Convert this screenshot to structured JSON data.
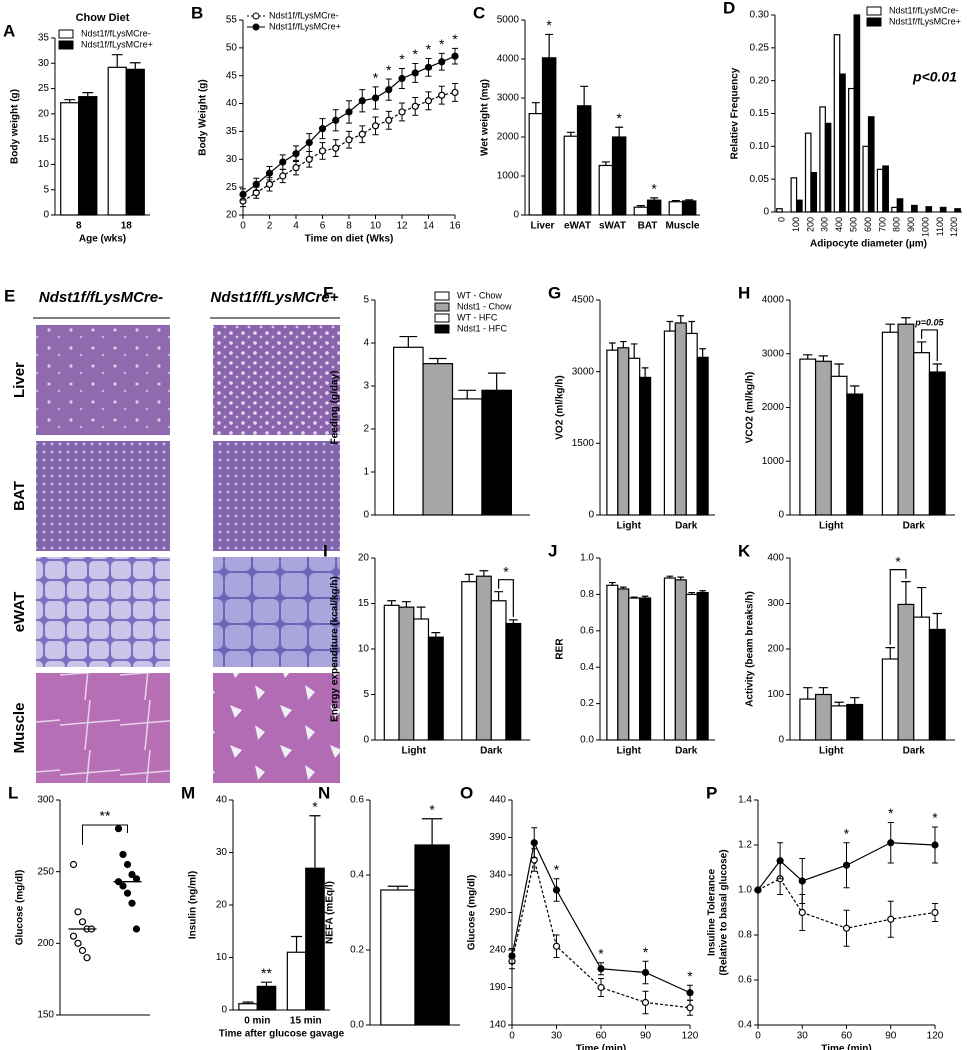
{
  "histology": {
    "panel": "E",
    "columns": [
      "Ndst1f/fLysMCre-",
      "Ndst1f/fLysMCre+"
    ],
    "rows": [
      "Liver",
      "BAT",
      "eWAT",
      "Muscle"
    ]
  },
  "chart_data": [
    {
      "panel": "A",
      "type": "bar",
      "title": "Chow Diet",
      "ylabel": "Body weight  (g)",
      "xlabel": "Age (wks)",
      "categories": [
        "8",
        "18"
      ],
      "ylim": [
        0,
        35
      ],
      "yticks": [
        0,
        5,
        10,
        15,
        20,
        25,
        30,
        35
      ],
      "legend": "top-left",
      "series": [
        {
          "name": "Ndst1f/fLysMCre-",
          "color": "#ffffff",
          "values": [
            22.2,
            29.2
          ],
          "errors": [
            0.6,
            2.5
          ]
        },
        {
          "name": "Ndst1f/fLysMCre+",
          "color": "#000000",
          "values": [
            23.4,
            28.8
          ],
          "errors": [
            0.8,
            1.3
          ]
        }
      ]
    },
    {
      "panel": "B",
      "type": "line",
      "ylabel": "Body Weight (g)",
      "xlabel": "Time on diet (Wks)",
      "x": [
        0,
        1,
        2,
        3,
        4,
        5,
        6,
        7,
        8,
        9,
        10,
        11,
        12,
        13,
        14,
        15,
        16
      ],
      "xlim": [
        0,
        16
      ],
      "xticks": [
        0,
        2,
        4,
        6,
        8,
        10,
        12,
        14,
        16
      ],
      "ylim": [
        20,
        55
      ],
      "yticks": [
        20,
        25,
        30,
        35,
        40,
        45,
        50,
        55
      ],
      "legend": "top-left",
      "series": [
        {
          "name": "Ndst1f/fLysMCre-",
          "color": "#000000",
          "marker": "open",
          "dashed": true,
          "values": [
            22.5,
            24,
            25.5,
            27,
            28.5,
            30,
            31.5,
            32,
            33.5,
            34.5,
            36,
            37,
            38.5,
            39.5,
            40.5,
            41.5,
            42
          ],
          "errors": [
            1,
            1,
            1.2,
            1.2,
            1.3,
            1.4,
            1.5,
            1.5,
            1.5,
            1.5,
            1.6,
            1.6,
            1.6,
            1.6,
            1.6,
            1.6,
            1.6
          ]
        },
        {
          "name": "Ndst1f/fLysMCre+",
          "color": "#000000",
          "marker": "filled",
          "dashed": false,
          "values": [
            23.7,
            25.5,
            27.5,
            29.5,
            31,
            33,
            35.5,
            37,
            38.5,
            40.5,
            41,
            42.5,
            44.5,
            45.5,
            46.5,
            47.5,
            48.5
          ],
          "errors": [
            1,
            1.1,
            1.2,
            1.3,
            1.4,
            1.6,
            1.8,
            1.9,
            2,
            2,
            2,
            1.9,
            1.8,
            1.7,
            1.6,
            1.5,
            1.4
          ],
          "sig": [
            null,
            null,
            null,
            null,
            null,
            null,
            null,
            null,
            null,
            null,
            "*",
            "*",
            "*",
            "*",
            "*",
            "*",
            "*"
          ]
        }
      ]
    },
    {
      "panel": "C",
      "type": "bar",
      "ylabel": "Wet weight (mg)",
      "categories": [
        "Liver",
        "eWAT",
        "sWAT",
        "BAT",
        "Muscle"
      ],
      "ylim": [
        0,
        5000
      ],
      "yticks": [
        0,
        1000,
        2000,
        3000,
        4000,
        5000
      ],
      "series": [
        {
          "color": "#ffffff",
          "values": [
            2600,
            2020,
            1270,
            200,
            340
          ],
          "errors": [
            280,
            100,
            90,
            40,
            30
          ]
        },
        {
          "color": "#000000",
          "values": [
            4030,
            2800,
            2000,
            380,
            360
          ],
          "errors": [
            600,
            500,
            250,
            60,
            30
          ],
          "sig": [
            "*",
            null,
            "*",
            "*",
            null
          ]
        }
      ]
    },
    {
      "panel": "D",
      "type": "bar",
      "ylabel": "Relatiev Frequency",
      "xlabel": "Adipocyte diameter (µm)",
      "annotation": "p<0.01",
      "xtick_rotation": -90,
      "categories": [
        "0",
        "100",
        "200",
        "300",
        "400",
        "500",
        "600",
        "700",
        "800",
        "900",
        "1000",
        "1100",
        "1200"
      ],
      "ylim": [
        0,
        0.3
      ],
      "yticks": [
        0,
        0.05,
        {
          "value": 0.1,
          "label": "0.10"
        },
        0.15,
        {
          "value": 0.2,
          "label": "0.20"
        },
        0.25,
        {
          "value": 0.3,
          "label": "0.30"
        }
      ],
      "legend": "top-right",
      "series": [
        {
          "name": "Ndst1f/fLysMCre-",
          "color": "#ffffff",
          "values": [
            0.005,
            0.052,
            0.12,
            0.16,
            0.27,
            0.188,
            0.1,
            0.065,
            0.007,
            0,
            0,
            0,
            0
          ]
        },
        {
          "name": "Ndst1f/fLysMCre+",
          "color": "#000000",
          "values": [
            0,
            0.018,
            0.06,
            0.135,
            0.21,
            0.3,
            0.145,
            0.07,
            0.02,
            0.01,
            0.008,
            0.007,
            0.005
          ]
        }
      ]
    },
    {
      "panel": "F",
      "type": "bar",
      "ylabel": "Feeding (g/day)",
      "categories": [
        null
      ],
      "ylim": [
        0,
        5
      ],
      "yticks": [
        0,
        1,
        2,
        3,
        4,
        5
      ],
      "legend": "top-right",
      "series": [
        {
          "name": "WT - Chow",
          "color": "#ffffff",
          "values": [
            3.9
          ],
          "errors": [
            0.25
          ]
        },
        {
          "name": "Ndst1 - Chow",
          "color": "#a6a6a6",
          "values": [
            3.52
          ],
          "errors": [
            0.12
          ]
        },
        {
          "name": "WT - HFC",
          "color": "#ffffff",
          "values": [
            2.7
          ],
          "errors": [
            0.2
          ]
        },
        {
          "name": "Ndst1 - HFC",
          "color": "#000000",
          "values": [
            2.9
          ],
          "errors": [
            0.4
          ]
        }
      ]
    },
    {
      "panel": "G",
      "type": "bar",
      "ylabel": "VO2 (ml/kg/h)",
      "categories": [
        "Light",
        "Dark"
      ],
      "ylim": [
        0,
        4500
      ],
      "yticks": [
        0,
        1500,
        3000,
        4500
      ],
      "series": [
        {
          "color": "#ffffff",
          "values": [
            3450,
            3850
          ],
          "errors": [
            150,
            200
          ]
        },
        {
          "color": "#a6a6a6",
          "values": [
            3500,
            4020
          ],
          "errors": [
            130,
            150
          ]
        },
        {
          "color": "#ffffff",
          "values": [
            3280,
            3800
          ],
          "errors": [
            300,
            250
          ]
        },
        {
          "color": "#000000",
          "values": [
            2880,
            3300
          ],
          "errors": [
            200,
            180
          ]
        }
      ]
    },
    {
      "panel": "H",
      "type": "bar",
      "ylabel": "VCO2 (ml/kg/h)",
      "categories": [
        "Light",
        "Dark"
      ],
      "ylim": [
        0,
        4000
      ],
      "yticks": [
        0,
        1000,
        2000,
        3000,
        4000
      ],
      "series": [
        {
          "color": "#ffffff",
          "values": [
            2900,
            3400
          ],
          "errors": [
            80,
            150
          ]
        },
        {
          "color": "#a6a6a6",
          "values": [
            2860,
            3550
          ],
          "errors": [
            100,
            120
          ]
        },
        {
          "color": "#ffffff",
          "values": [
            2580,
            3020
          ],
          "errors": [
            230,
            200
          ]
        },
        {
          "color": "#000000",
          "values": [
            2250,
            2660
          ],
          "errors": [
            150,
            150
          ],
          "bracket": [
            null,
            "p=0.05"
          ]
        }
      ]
    },
    {
      "panel": "I",
      "type": "bar",
      "ylabel": "Energy expenditure (kcal/kg/h)",
      "categories": [
        "Light",
        "Dark"
      ],
      "ylim": [
        0,
        20
      ],
      "yticks": [
        0,
        5,
        10,
        15,
        20
      ],
      "series": [
        {
          "color": "#ffffff",
          "values": [
            14.8,
            17.4
          ],
          "errors": [
            0.5,
            0.8
          ]
        },
        {
          "color": "#a6a6a6",
          "values": [
            14.6,
            18
          ],
          "errors": [
            0.6,
            0.6
          ]
        },
        {
          "color": "#ffffff",
          "values": [
            13.3,
            15.3
          ],
          "errors": [
            1.3,
            1
          ]
        },
        {
          "color": "#000000",
          "values": [
            11.3,
            12.8
          ],
          "errors": [
            0.5,
            0.4
          ],
          "bracket": [
            null,
            "*"
          ]
        }
      ]
    },
    {
      "panel": "J",
      "type": "bar",
      "ylabel": "RER",
      "categories": [
        "Light",
        "Dark"
      ],
      "ylim": [
        0,
        1
      ],
      "yticks": [
        {
          "value": 0,
          "label": "0.0"
        },
        0.2,
        0.4,
        0.6,
        0.8,
        {
          "value": 1,
          "label": "1.0"
        }
      ],
      "series": [
        {
          "color": "#ffffff",
          "values": [
            0.85,
            0.89
          ],
          "errors": [
            0.015,
            0.01
          ]
        },
        {
          "color": "#a6a6a6",
          "values": [
            0.83,
            0.88
          ],
          "errors": [
            0.01,
            0.015
          ]
        },
        {
          "color": "#ffffff",
          "values": [
            0.78,
            0.8
          ],
          "errors": [
            0.005,
            0.01
          ]
        },
        {
          "color": "#000000",
          "values": [
            0.78,
            0.81
          ],
          "errors": [
            0.01,
            0.01
          ]
        }
      ]
    },
    {
      "panel": "K",
      "type": "bar",
      "ylabel": "Activity (beam breaks/h)",
      "categories": [
        "Light",
        "Dark"
      ],
      "ylim": [
        0,
        400
      ],
      "yticks": [
        0,
        100,
        200,
        300,
        400
      ],
      "series": [
        {
          "color": "#ffffff",
          "values": [
            90,
            178
          ],
          "errors": [
            25,
            25
          ]
        },
        {
          "color": "#a6a6a6",
          "values": [
            100,
            298
          ],
          "errors": [
            15,
            50
          ],
          "bracket": [
            null,
            "*"
          ]
        },
        {
          "color": "#ffffff",
          "values": [
            75,
            270
          ],
          "errors": [
            8,
            65
          ]
        },
        {
          "color": "#000000",
          "values": [
            78,
            243
          ],
          "errors": [
            15,
            35
          ]
        }
      ]
    },
    {
      "panel": "L",
      "type": "dot",
      "ylabel": "Glucose (mg/dl)",
      "ylim": [
        150,
        300
      ],
      "yticks": [
        150,
        200,
        250,
        300
      ],
      "bracket": "**",
      "series": [
        {
          "color": "#000000",
          "marker": "open",
          "values": [
            255,
            222,
            215,
            210,
            210,
            205,
            200,
            195,
            190
          ],
          "mean": 210
        },
        {
          "color": "#000000",
          "marker": "filled",
          "values": [
            280,
            262,
            255,
            248,
            245,
            243,
            240,
            235,
            228,
            210
          ],
          "mean": 243
        }
      ]
    },
    {
      "panel": "M",
      "type": "bar",
      "ylabel": "Insulin (ng/ml)",
      "xlabel": "Time after glucose gavage",
      "categories": [
        "0 min",
        "15 min"
      ],
      "ylim": [
        0,
        40
      ],
      "yticks": [
        0,
        10,
        20,
        30,
        40
      ],
      "series": [
        {
          "color": "#ffffff",
          "values": [
            1.2,
            11
          ],
          "errors": [
            0.3,
            3
          ]
        },
        {
          "color": "#000000",
          "values": [
            4.5,
            27
          ],
          "errors": [
            0.8,
            10
          ],
          "sig": [
            "**",
            "*"
          ]
        }
      ]
    },
    {
      "panel": "N",
      "type": "bar",
      "ylabel": "NEFA (mEq/l)",
      "categories": [
        null
      ],
      "ylim": [
        0,
        0.6
      ],
      "yticks": [
        {
          "value": 0,
          "label": "0.0"
        },
        0.2,
        0.4,
        0.6
      ],
      "series": [
        {
          "color": "#ffffff",
          "values": [
            0.36
          ],
          "errors": [
            0.01
          ]
        },
        {
          "color": "#000000",
          "values": [
            0.48
          ],
          "errors": [
            0.07
          ],
          "sig": [
            "*"
          ]
        }
      ]
    },
    {
      "panel": "O",
      "type": "line",
      "ylabel": "Glucose (mg/dl)",
      "xlabel": "Time (min)",
      "x": [
        0,
        15,
        30,
        60,
        90,
        120
      ],
      "xlim": [
        0,
        120
      ],
      "xticks": [
        0,
        30,
        60,
        90,
        120
      ],
      "ylim": [
        140,
        440
      ],
      "yticks": [
        140,
        190,
        240,
        290,
        340,
        390,
        440
      ],
      "series": [
        {
          "color": "#000000",
          "marker": "open",
          "dashed": true,
          "values": [
            225,
            360,
            245,
            190,
            170,
            163
          ],
          "errors": [
            10,
            15,
            15,
            12,
            15,
            10
          ]
        },
        {
          "color": "#000000",
          "marker": "filled",
          "dashed": false,
          "values": [
            232,
            383,
            320,
            215,
            210,
            183
          ],
          "errors": [
            10,
            20,
            15,
            8,
            15,
            10
          ],
          "sig": [
            null,
            null,
            "*",
            "*",
            "*",
            "*"
          ]
        }
      ]
    },
    {
      "panel": "P",
      "type": "line",
      "ylabel": [
        "Insuline Tolerance",
        "(Relative to basal glucose)"
      ],
      "xlabel": "Time (min)",
      "x": [
        0,
        15,
        30,
        60,
        90,
        120
      ],
      "xlim": [
        0,
        120
      ],
      "xticks": [
        0,
        30,
        60,
        90,
        120
      ],
      "ylim": [
        0.4,
        1.4
      ],
      "yticks": [
        0.4,
        0.6,
        0.8,
        {
          "value": 1,
          "label": "1.0"
        },
        1.2,
        1.4
      ],
      "series": [
        {
          "color": "#000000",
          "marker": "open",
          "dashed": true,
          "values": [
            1,
            1.05,
            0.9,
            0.83,
            0.87,
            0.9
          ],
          "errors": [
            0,
            0.07,
            0.08,
            0.08,
            0.08,
            0.04
          ]
        },
        {
          "color": "#000000",
          "marker": "filled",
          "dashed": false,
          "values": [
            1,
            1.13,
            1.04,
            1.11,
            1.21,
            1.2
          ],
          "errors": [
            0,
            0.08,
            0.1,
            0.1,
            0.09,
            0.08
          ],
          "sig": [
            null,
            null,
            null,
            "*",
            "*",
            "*"
          ]
        }
      ]
    }
  ]
}
